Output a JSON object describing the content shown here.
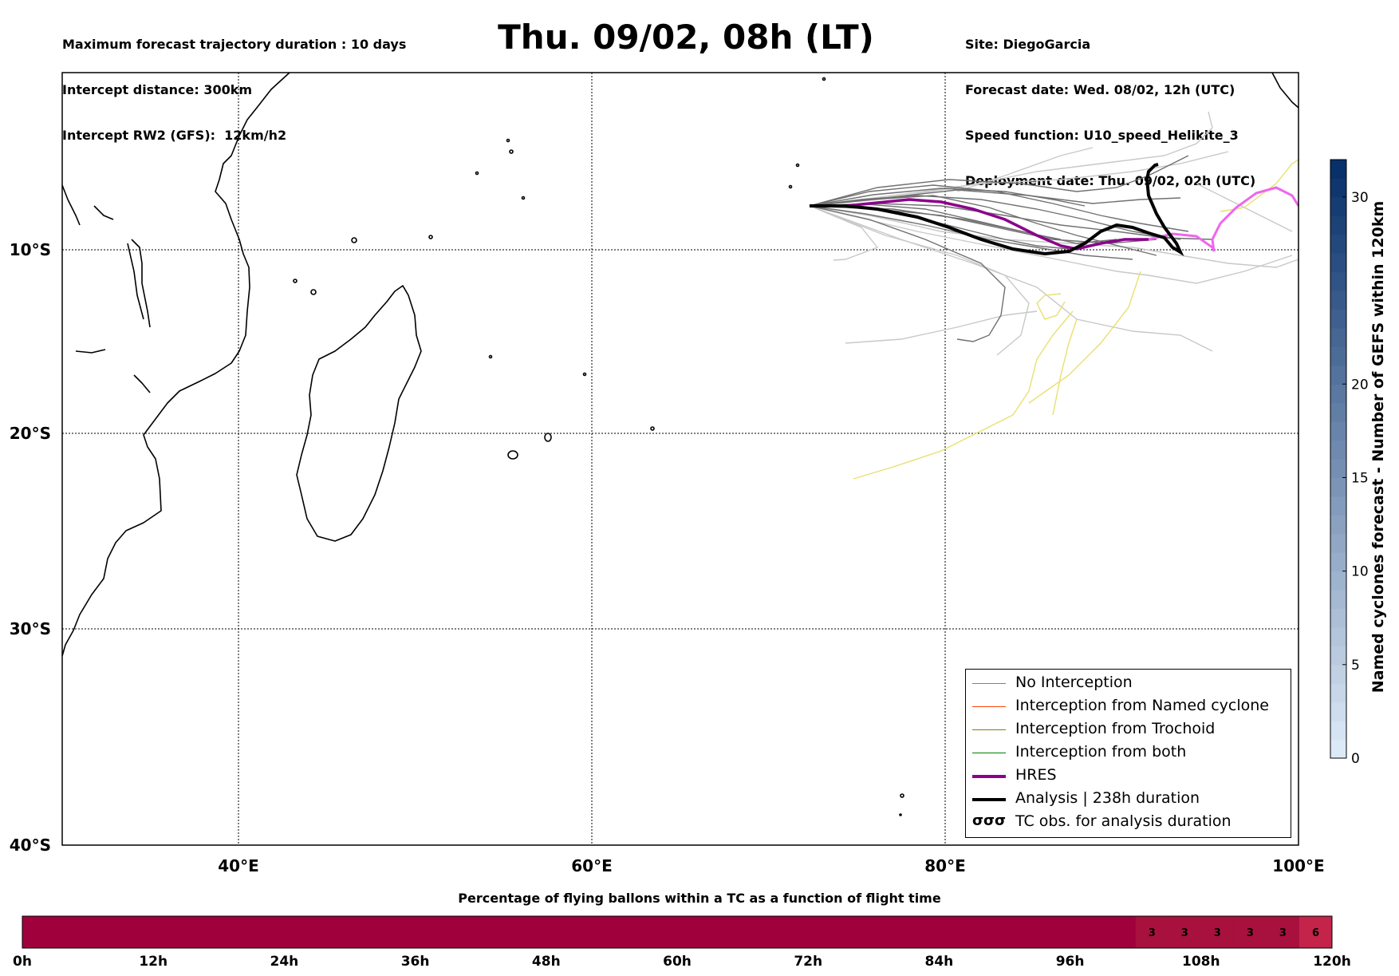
{
  "header": {
    "left_lines": [
      "Maximum forecast trajectory duration : 10 days",
      "Intercept distance: 300km",
      "Intercept RW2 (GFS):  12km/h2"
    ],
    "title": "Thu. 09/02, 08h (LT)",
    "right_lines": [
      "Site: DiegoGarcia",
      "Forecast date: Wed. 08/02, 12h (UTC)",
      "Speed function: U10_speed_Helikite_3",
      "Deployment date: Thu. 09/02, 02h (UTC)"
    ]
  },
  "map": {
    "lat_labels": [
      "10°S",
      "20°S",
      "30°S",
      "40°S"
    ],
    "lon_labels": [
      "40°E",
      "60°E",
      "80°E",
      "100°E"
    ],
    "extent": {
      "lon_min": 30,
      "lon_max": 100,
      "lat_min": -40,
      "lat_max": -1
    },
    "colors": {
      "gefs": "#707070",
      "gefs_light": "#c8c8c8",
      "hres": "#8b008b",
      "analysis": "#000000",
      "magenta": "#ee66ee",
      "yellow": "#e8e070"
    }
  },
  "legend": {
    "items": [
      {
        "label": "No Interception",
        "color": "#808080",
        "width": 1
      },
      {
        "label": "Interception from Named cyclone",
        "color": "#ff4500",
        "width": 1
      },
      {
        "label": "Interception from Trochoid",
        "color": "#808000",
        "width": 1
      },
      {
        "label": "Interception from both",
        "color": "#008000",
        "width": 1
      },
      {
        "label": "HRES",
        "color": "#8b008b",
        "width": 4
      },
      {
        "label": "Analysis | 238h duration",
        "color": "#000000",
        "width": 4
      },
      {
        "label": "TC obs. for analysis duration",
        "symbol": "σσσ"
      }
    ]
  },
  "colorbar": {
    "title": "Named cyclones forecast - Number of GEFS within 120km",
    "ticks": [
      "0",
      "5",
      "10",
      "15",
      "20",
      "30"
    ],
    "tick_values": [
      0,
      5,
      10,
      15,
      20,
      30
    ],
    "vmax": 32,
    "color_low": "#dce9f6",
    "color_high": "#08306b"
  },
  "percent_bar": {
    "title": "Percentage of flying ballons within a TC as a function of flight time",
    "tick_labels": [
      "0h",
      "12h",
      "24h",
      "36h",
      "48h",
      "60h",
      "72h",
      "84h",
      "96h",
      "108h",
      "120h"
    ],
    "max_hours": 120,
    "base_color": "#a0003c",
    "segments": [
      {
        "start_h": 102,
        "end_h": 105,
        "value": "3",
        "color": "#a8103e"
      },
      {
        "start_h": 105,
        "end_h": 108,
        "value": "3",
        "color": "#a8103e"
      },
      {
        "start_h": 108,
        "end_h": 111,
        "value": "3",
        "color": "#a8103e"
      },
      {
        "start_h": 111,
        "end_h": 114,
        "value": "3",
        "color": "#a8103e"
      },
      {
        "start_h": 114,
        "end_h": 117,
        "value": "3",
        "color": "#a8103e"
      },
      {
        "start_h": 117,
        "end_h": 120,
        "value": "6",
        "color": "#c4244a"
      }
    ]
  }
}
